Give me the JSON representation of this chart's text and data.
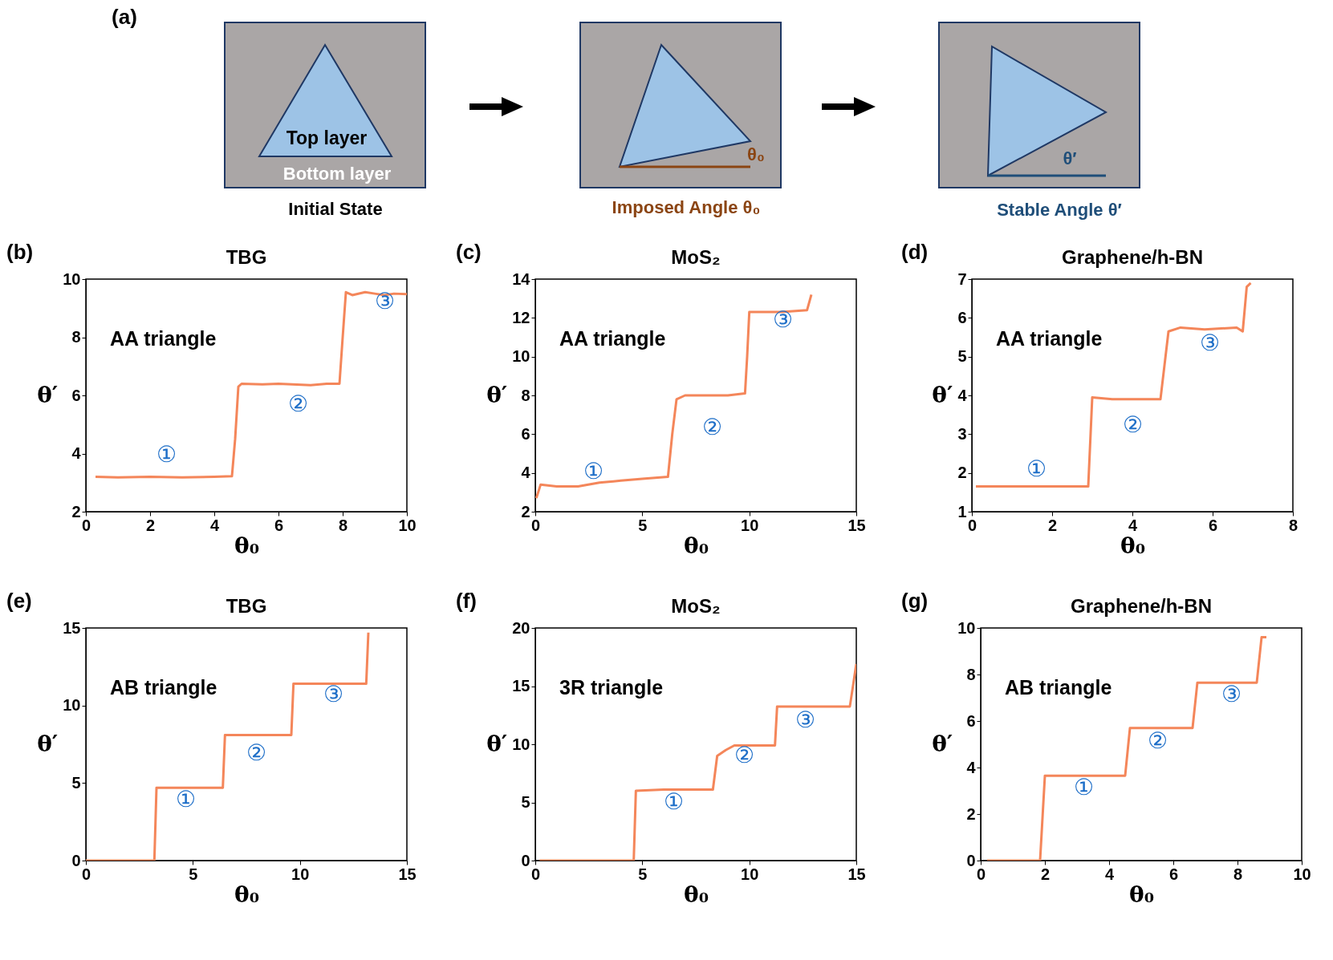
{
  "chart_data": [
    {
      "type": "other",
      "annotations": [
        "(a)",
        "Top layer",
        "Bottom layer",
        "Initial State",
        "Imposed Angle θ₀",
        "θ₀",
        "Stable Angle θ′",
        "θ′"
      ]
    },
    {
      "type": "line",
      "title": "TBG",
      "xlabel": "θ₀",
      "ylabel": "θ′",
      "color": "#f4865a",
      "xlim": [
        0,
        10
      ],
      "ylim": [
        2,
        10
      ],
      "xticks": [
        0,
        2,
        4,
        6,
        8,
        10
      ],
      "yticks": [
        2,
        4,
        6,
        8,
        10
      ],
      "x": [
        0.3,
        1,
        2,
        3,
        4,
        4.55,
        4.65,
        4.75,
        4.85,
        5.5,
        6,
        7,
        7.5,
        7.9,
        8.0,
        8.1,
        8.3,
        8.7,
        9,
        9.3,
        9.6,
        10
      ],
      "values": [
        3.2,
        3.18,
        3.2,
        3.18,
        3.2,
        3.22,
        4.5,
        6.3,
        6.4,
        6.38,
        6.4,
        6.35,
        6.4,
        6.4,
        8.0,
        9.55,
        9.45,
        9.55,
        9.5,
        9.45,
        9.5,
        9.48
      ],
      "annotations": [
        "(b)",
        "AA triangle",
        "①",
        "②",
        "③"
      ]
    },
    {
      "type": "line",
      "title": "MoS₂",
      "xlabel": "θ₀",
      "ylabel": "θ′",
      "color": "#f4865a",
      "xlim": [
        0,
        15
      ],
      "ylim": [
        2,
        14
      ],
      "xticks": [
        0,
        5,
        10,
        15
      ],
      "yticks": [
        2,
        4,
        6,
        8,
        10,
        12,
        14
      ],
      "x": [
        0.05,
        0.25,
        1,
        2,
        3,
        4,
        5,
        6.2,
        6.4,
        6.6,
        7,
        8,
        9,
        9.8,
        9.9,
        10.0,
        10.5,
        11.5,
        12.7,
        12.9
      ],
      "values": [
        2.7,
        3.4,
        3.3,
        3.3,
        3.5,
        3.6,
        3.7,
        3.8,
        6.0,
        7.8,
        8.0,
        8.0,
        8.0,
        8.1,
        10.0,
        12.3,
        12.3,
        12.3,
        12.4,
        13.2
      ],
      "annotations": [
        "(c)",
        "AA triangle",
        "①",
        "②",
        "③"
      ]
    },
    {
      "type": "line",
      "title": "Graphene/h-BN",
      "xlabel": "θ₀",
      "ylabel": "θ′",
      "color": "#f4865a",
      "xlim": [
        0,
        8
      ],
      "ylim": [
        1,
        7
      ],
      "xticks": [
        0,
        2,
        4,
        6,
        8
      ],
      "yticks": [
        1,
        2,
        3,
        4,
        5,
        6,
        7
      ],
      "x": [
        0.1,
        1,
        2,
        2.9,
        3.0,
        3.5,
        4.2,
        4.7,
        4.9,
        5.2,
        5.8,
        6.6,
        6.75,
        6.85,
        6.95
      ],
      "values": [
        1.65,
        1.65,
        1.65,
        1.65,
        3.95,
        3.9,
        3.9,
        3.9,
        5.65,
        5.75,
        5.7,
        5.75,
        5.65,
        6.8,
        6.9
      ],
      "annotations": [
        "(d)",
        "AA triangle",
        "①",
        "②",
        "③"
      ]
    },
    {
      "type": "line",
      "title": "TBG",
      "xlabel": "θ₀",
      "ylabel": "θ′",
      "color": "#f4865a",
      "xlim": [
        0,
        15
      ],
      "ylim": [
        0,
        15
      ],
      "xticks": [
        0,
        5,
        10,
        15
      ],
      "yticks": [
        0,
        5,
        10,
        15
      ],
      "x": [
        0,
        3.2,
        3.3,
        6.4,
        6.5,
        9.6,
        9.7,
        13.1,
        13.2
      ],
      "values": [
        0,
        0,
        4.7,
        4.7,
        8.1,
        8.1,
        11.4,
        11.4,
        14.7
      ],
      "annotations": [
        "(e)",
        "AB triangle",
        "①",
        "②",
        "③"
      ]
    },
    {
      "type": "line",
      "title": "MoS₂",
      "xlabel": "θ₀",
      "ylabel": "θ′",
      "color": "#f4865a",
      "xlim": [
        0,
        15
      ],
      "ylim": [
        0,
        20
      ],
      "xticks": [
        0,
        5,
        10,
        15
      ],
      "yticks": [
        0,
        5,
        10,
        15,
        20
      ],
      "x": [
        0.2,
        4.6,
        4.7,
        6,
        8.3,
        8.5,
        8.9,
        9.3,
        10,
        11.2,
        11.3,
        12.5,
        14.7,
        15
      ],
      "values": [
        0,
        0,
        6.0,
        6.1,
        6.1,
        9.0,
        9.5,
        9.9,
        9.9,
        9.9,
        13.25,
        13.25,
        13.25,
        16.9
      ],
      "annotations": [
        "(f)",
        "3R triangle",
        "①",
        "②",
        "③"
      ]
    },
    {
      "type": "line",
      "title": "Graphene/h-BN",
      "xlabel": "θ₀",
      "ylabel": "θ′",
      "color": "#f4865a",
      "xlim": [
        0,
        10
      ],
      "ylim": [
        0,
        10
      ],
      "xticks": [
        0,
        2,
        4,
        6,
        8,
        10
      ],
      "yticks": [
        0,
        2,
        4,
        6,
        8,
        10
      ],
      "x": [
        0.2,
        1.85,
        2.0,
        4.5,
        4.65,
        6.6,
        6.75,
        8.6,
        8.75,
        8.9
      ],
      "values": [
        0,
        0,
        3.65,
        3.65,
        5.7,
        5.7,
        7.65,
        7.65,
        9.6,
        9.6
      ],
      "annotations": [
        "(g)",
        "AB triangle",
        "①",
        "②",
        "③"
      ]
    }
  ]
}
